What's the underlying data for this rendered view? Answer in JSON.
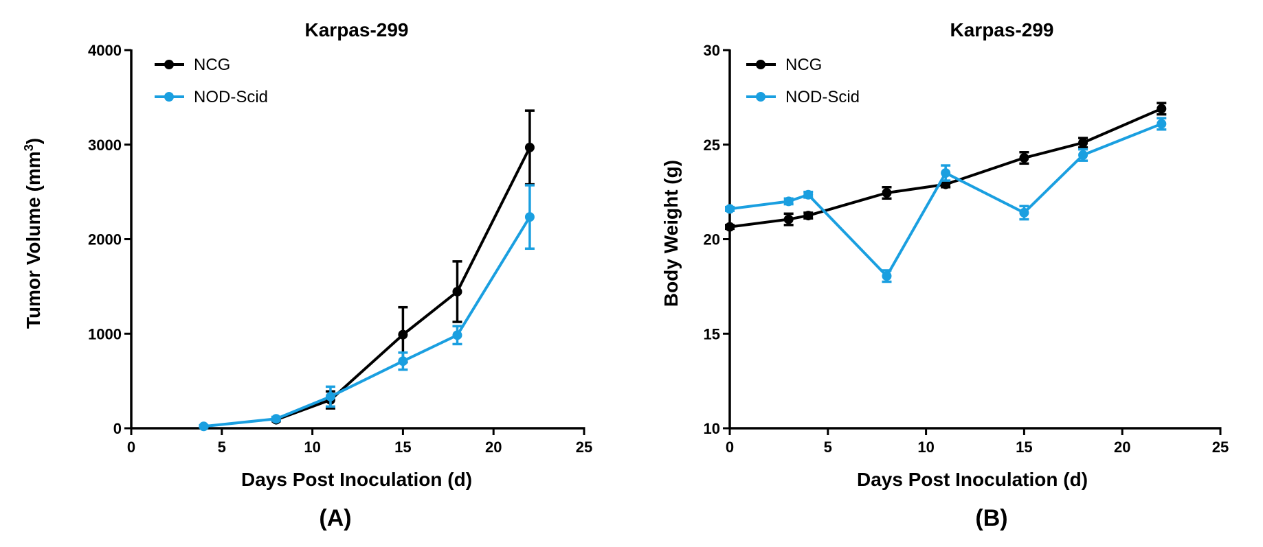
{
  "chart_data": [
    {
      "type": "line",
      "title": "Karpas-299",
      "xlabel": "Days Post Inoculation (d)",
      "ylabel": "Tumor Volume (mm",
      "ylabel_sup": "3",
      "ylabel_end": ")",
      "panel_label": "(A)",
      "xlim": [
        0,
        25
      ],
      "ylim": [
        0,
        4000
      ],
      "xticks": [
        0,
        5,
        10,
        15,
        20,
        25
      ],
      "yticks": [
        0,
        1000,
        2000,
        3000,
        4000
      ],
      "legend_position": "top-left",
      "series": [
        {
          "name": "NCG",
          "color": "#000000",
          "x": [
            8,
            11,
            15,
            18,
            22
          ],
          "y": [
            90,
            300,
            990,
            1445,
            2970
          ],
          "err": [
            15,
            90,
            290,
            320,
            390
          ]
        },
        {
          "name": "NOD-Scid",
          "color": "#1a9fe0",
          "x": [
            4,
            8,
            11,
            15,
            18,
            22
          ],
          "y": [
            20,
            100,
            335,
            710,
            985,
            2235
          ],
          "err": [
            10,
            20,
            105,
            90,
            95,
            335
          ]
        }
      ]
    },
    {
      "type": "line",
      "title": "Karpas-299",
      "xlabel": "Days Post Inoculation (d)",
      "ylabel": "Body Weight (g)",
      "panel_label": "(B)",
      "xlim": [
        0,
        25
      ],
      "ylim": [
        10,
        30
      ],
      "xticks": [
        0,
        5,
        10,
        15,
        20,
        25
      ],
      "yticks": [
        10,
        15,
        20,
        25,
        30
      ],
      "legend_position": "top-left",
      "series": [
        {
          "name": "NCG",
          "color": "#000000",
          "x": [
            0,
            3,
            4,
            8,
            11,
            15,
            18,
            22
          ],
          "y": [
            20.65,
            21.05,
            21.25,
            22.45,
            22.9,
            24.3,
            25.1,
            26.9
          ],
          "err": [
            0.1,
            0.3,
            0.15,
            0.3,
            0.15,
            0.3,
            0.25,
            0.3
          ]
        },
        {
          "name": "NOD-Scid",
          "color": "#1a9fe0",
          "x": [
            0,
            3,
            4,
            8,
            11,
            15,
            18,
            22
          ],
          "y": [
            21.6,
            22.0,
            22.35,
            18.05,
            23.5,
            21.4,
            24.45,
            26.1
          ],
          "err": [
            0.1,
            0.15,
            0.15,
            0.3,
            0.4,
            0.35,
            0.3,
            0.3
          ]
        }
      ]
    }
  ]
}
